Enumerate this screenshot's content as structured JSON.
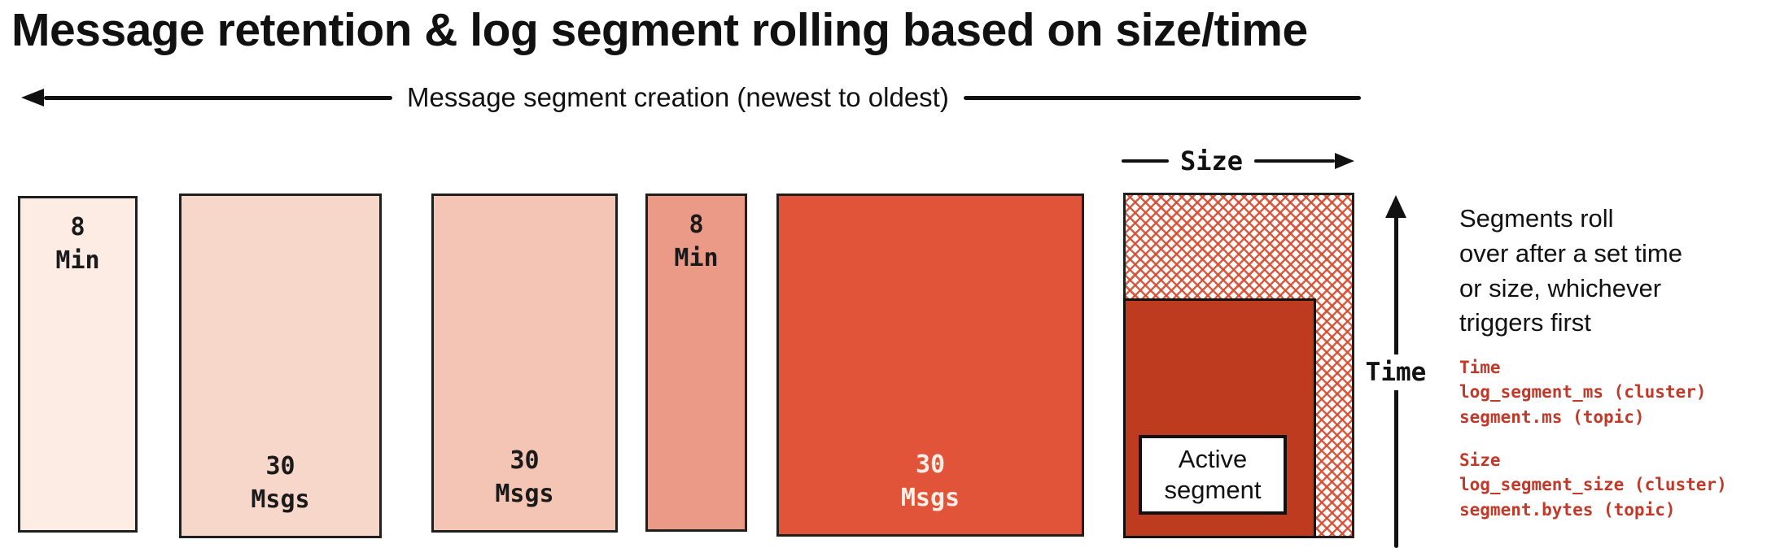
{
  "title": "Message retention & log segment rolling based on size/time",
  "creation_arrow": {
    "label": "Message segment creation (newest to oldest)"
  },
  "size_axis": {
    "label": "Size"
  },
  "time_axis": {
    "label": "Time"
  },
  "segments": [
    {
      "name": "segment-1",
      "label": "8\nMin",
      "color": "#fcece4",
      "text_color": "#1a1a1a"
    },
    {
      "name": "segment-2",
      "label": "30\nMsgs",
      "color": "#f8d7cb",
      "text_color": "#1a1a1a"
    },
    {
      "name": "segment-3",
      "label": "30\nMsgs",
      "color": "#f4c5b4",
      "text_color": "#1a1a1a"
    },
    {
      "name": "segment-4",
      "label": "8\nMin",
      "color": "#eb9a87",
      "text_color": "#1a1a1a"
    },
    {
      "name": "segment-5",
      "label": "30\nMsgs",
      "color": "#e2543a",
      "text_color": "#fdeee6"
    },
    {
      "name": "active-segment",
      "label": "Active\nsegment",
      "hatch_color": "#d64a2e",
      "fill_color": "#bf3b20",
      "box_color": "#ffffff"
    }
  ],
  "note": "Segments roll\nover after a set time\nor size, whichever\ntriggers first",
  "config": {
    "accent_color": "#c2392a",
    "time": {
      "heading": "Time",
      "lines": [
        "log_segment_ms (cluster)",
        "segment.ms (topic)"
      ]
    },
    "size": {
      "heading": "Size",
      "lines": [
        "log_segment_size (cluster)",
        "segment.bytes (topic)"
      ]
    }
  }
}
